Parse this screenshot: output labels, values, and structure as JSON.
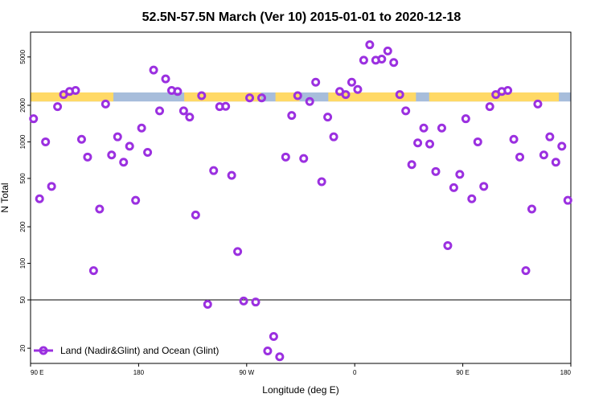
{
  "chart_data": {
    "type": "scatter",
    "title": "52.5N-57.5N March (Ver 10)   2015-01-01 to 2020-12-18",
    "xlabel": "Longitude (deg E)",
    "ylabel": "N Total",
    "x_scale": "linear",
    "y_scale": "log",
    "xlim": [
      90,
      540
    ],
    "ylim": [
      15,
      8000
    ],
    "x_ticks": [
      {
        "value": 90,
        "label": "90 E"
      },
      {
        "value": 180,
        "label": "180"
      },
      {
        "value": 270,
        "label": "90 W"
      },
      {
        "value": 360,
        "label": "0"
      },
      {
        "value": 450,
        "label": "90 E"
      },
      {
        "value": 540,
        "label": "180"
      }
    ],
    "y_ticks": [
      {
        "value": 20,
        "label": "20"
      },
      {
        "value": 50,
        "label": "50"
      },
      {
        "value": 100,
        "label": "100"
      },
      {
        "value": 200,
        "label": "200"
      },
      {
        "value": 500,
        "label": "500"
      },
      {
        "value": 1000,
        "label": "1000"
      },
      {
        "value": 2000,
        "label": "2000"
      },
      {
        "value": 5000,
        "label": "5000"
      }
    ],
    "reference_line": 50,
    "band": {
      "y_low": 2150,
      "y_high": 2550,
      "land_color": "#ffd966",
      "ocean_color": "#a7bddb",
      "land_ranges": [
        [
          90,
          159
        ],
        [
          218,
          282
        ],
        [
          294,
          314
        ],
        [
          338,
          411
        ],
        [
          422,
          530
        ]
      ]
    },
    "legend": {
      "position": "bottom-left",
      "label": "Land (Nadir&Glint) and Ocean (Glint)"
    },
    "series": [
      {
        "name": "Land (Nadir&Glint) and Ocean (Glint)",
        "color": "#9b30e0",
        "points": [
          [
            92.5,
            1550
          ],
          [
            97.5,
            340
          ],
          [
            102.5,
            1000
          ],
          [
            107.5,
            430
          ],
          [
            112.5,
            1950
          ],
          [
            117.5,
            2450
          ],
          [
            122.5,
            2600
          ],
          [
            127.5,
            2650
          ],
          [
            132.5,
            1050
          ],
          [
            137.5,
            750
          ],
          [
            142.5,
            87
          ],
          [
            147.5,
            280
          ],
          [
            152.5,
            2050
          ],
          [
            157.5,
            780
          ],
          [
            162.5,
            1100
          ],
          [
            167.5,
            680
          ],
          [
            172.5,
            920
          ],
          [
            177.5,
            330
          ],
          [
            182.5,
            1300
          ],
          [
            187.5,
            820
          ],
          [
            192.5,
            3900
          ],
          [
            197.5,
            1800
          ],
          [
            202.5,
            3300
          ],
          [
            207.5,
            2650
          ],
          [
            212.5,
            2600
          ],
          [
            217.5,
            1800
          ],
          [
            222.5,
            1600
          ],
          [
            227.5,
            250
          ],
          [
            232.5,
            2400
          ],
          [
            237.5,
            46
          ],
          [
            242.5,
            580
          ],
          [
            247.5,
            1950
          ],
          [
            252.5,
            1960
          ],
          [
            257.5,
            530
          ],
          [
            262.5,
            125
          ],
          [
            267.5,
            49
          ],
          [
            272.5,
            2300
          ],
          [
            277.5,
            48
          ],
          [
            282.5,
            2300
          ],
          [
            287.5,
            19
          ],
          [
            292.5,
            25
          ],
          [
            297.5,
            17
          ],
          [
            302.5,
            750
          ],
          [
            307.5,
            1650
          ],
          [
            312.5,
            2400
          ],
          [
            317.5,
            730
          ],
          [
            322.5,
            2150
          ],
          [
            327.5,
            3100
          ],
          [
            332.5,
            470
          ],
          [
            337.5,
            1600
          ],
          [
            342.5,
            1100
          ],
          [
            347.5,
            2600
          ],
          [
            352.5,
            2450
          ],
          [
            357.5,
            3100
          ],
          [
            362.5,
            2700
          ],
          [
            367.5,
            4700
          ],
          [
            372.5,
            6300
          ],
          [
            377.5,
            4700
          ],
          [
            382.5,
            4800
          ],
          [
            387.5,
            5600
          ],
          [
            392.5,
            4500
          ],
          [
            397.5,
            2450
          ],
          [
            402.5,
            1800
          ],
          [
            407.5,
            650
          ],
          [
            412.5,
            980
          ],
          [
            417.5,
            1300
          ],
          [
            422.5,
            960
          ],
          [
            427.5,
            570
          ],
          [
            432.5,
            1300
          ],
          [
            437.5,
            140
          ],
          [
            442.5,
            420
          ],
          [
            447.5,
            540
          ],
          [
            452.5,
            1550
          ],
          [
            457.5,
            340
          ],
          [
            462.5,
            1000
          ],
          [
            467.5,
            430
          ],
          [
            472.5,
            1950
          ],
          [
            477.5,
            2450
          ],
          [
            482.5,
            2600
          ],
          [
            487.5,
            2650
          ],
          [
            492.5,
            1050
          ],
          [
            497.5,
            750
          ],
          [
            502.5,
            87
          ],
          [
            507.5,
            280
          ],
          [
            512.5,
            2050
          ],
          [
            517.5,
            780
          ],
          [
            522.5,
            1100
          ],
          [
            527.5,
            680
          ],
          [
            532.5,
            920
          ],
          [
            537.5,
            330
          ]
        ]
      }
    ]
  }
}
